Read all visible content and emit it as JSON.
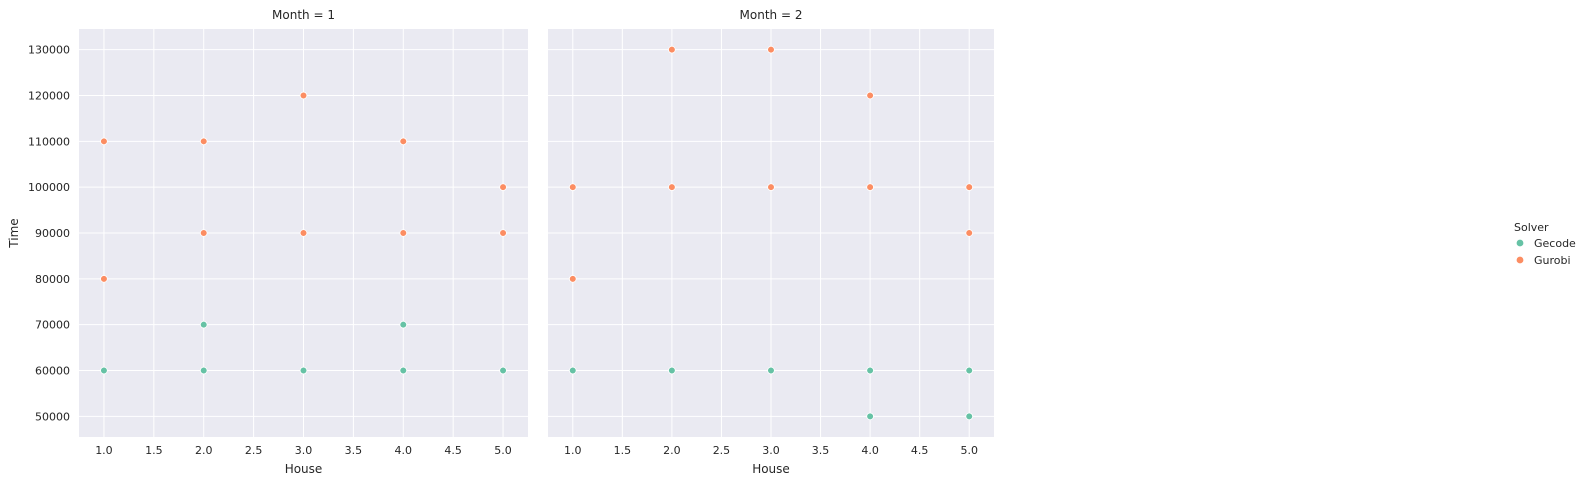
{
  "chart_data": {
    "type": "scatter",
    "facet_variable": "Month",
    "xlabel": "House",
    "ylabel": "Time",
    "xlim": [
      0.75,
      5.25
    ],
    "ylim": [
      45500,
      134500
    ],
    "xticks": [
      1.0,
      1.5,
      2.0,
      2.5,
      3.0,
      3.5,
      4.0,
      4.5,
      5.0
    ],
    "xtick_labels": [
      "1.0",
      "1.5",
      "2.0",
      "2.5",
      "3.0",
      "3.5",
      "4.0",
      "4.5",
      "5.0"
    ],
    "yticks": [
      50000,
      60000,
      70000,
      80000,
      90000,
      100000,
      110000,
      120000,
      130000
    ],
    "ytick_labels": [
      "50000",
      "60000",
      "70000",
      "80000",
      "90000",
      "100000",
      "110000",
      "120000",
      "130000"
    ],
    "grid": true,
    "sharey": true,
    "legend": {
      "title": "Solver",
      "placement": "right",
      "entries": [
        {
          "label": "Gecode",
          "color": "#66c2a5"
        },
        {
          "label": "Gurobi",
          "color": "#fc8d62"
        }
      ]
    },
    "panels": [
      {
        "title": "Month = 1",
        "series": [
          {
            "name": "Gecode",
            "color": "#66c2a5",
            "points": [
              [
                1,
                60000
              ],
              [
                2,
                70000
              ],
              [
                2,
                60000
              ],
              [
                3,
                60000
              ],
              [
                4,
                70000
              ],
              [
                4,
                60000
              ],
              [
                5,
                60000
              ]
            ]
          },
          {
            "name": "Gurobi",
            "color": "#fc8d62",
            "points": [
              [
                1,
                110000
              ],
              [
                1,
                80000
              ],
              [
                2,
                110000
              ],
              [
                2,
                90000
              ],
              [
                3,
                120000
              ],
              [
                3,
                90000
              ],
              [
                4,
                110000
              ],
              [
                4,
                90000
              ],
              [
                5,
                100000
              ],
              [
                5,
                90000
              ]
            ]
          }
        ]
      },
      {
        "title": "Month = 2",
        "series": [
          {
            "name": "Gecode",
            "color": "#66c2a5",
            "points": [
              [
                1,
                60000
              ],
              [
                2,
                60000
              ],
              [
                3,
                60000
              ],
              [
                4,
                60000
              ],
              [
                4,
                50000
              ],
              [
                5,
                60000
              ],
              [
                5,
                50000
              ]
            ]
          },
          {
            "name": "Gurobi",
            "color": "#fc8d62",
            "points": [
              [
                1,
                100000
              ],
              [
                1,
                80000
              ],
              [
                2,
                130000
              ],
              [
                2,
                100000
              ],
              [
                3,
                130000
              ],
              [
                3,
                100000
              ],
              [
                4,
                120000
              ],
              [
                4,
                100000
              ],
              [
                5,
                100000
              ],
              [
                5,
                90000
              ]
            ]
          }
        ]
      }
    ]
  }
}
